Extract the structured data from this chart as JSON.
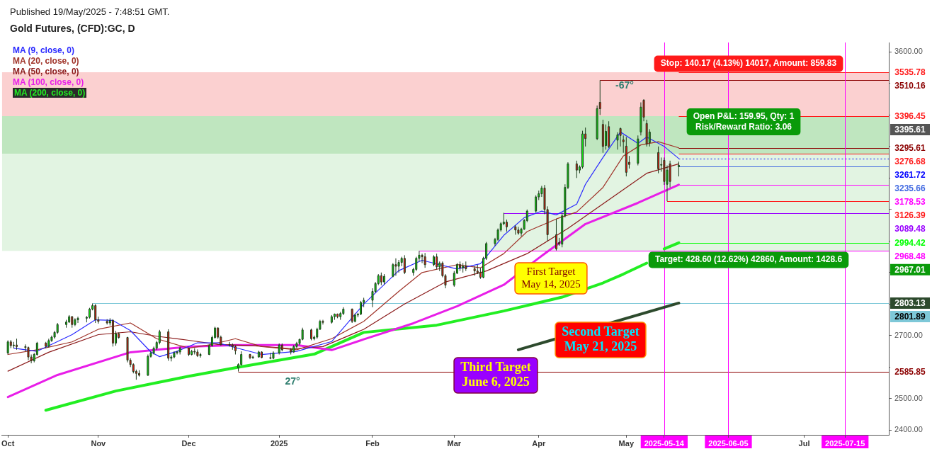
{
  "chart_data": {
    "type": "candlestick",
    "title": "Gold Futures, (CFD):GC, D",
    "subtitle": "Published 19/May/2025 - 7:48:51 GMT.",
    "x": [
      "2024-10-01",
      "2024-10-02",
      "2024-10-03",
      "2024-10-04",
      "2024-10-07",
      "2024-10-08",
      "2024-10-09",
      "2024-10-10",
      "2024-10-11",
      "2024-10-14",
      "2024-10-15",
      "2024-10-16",
      "2024-10-17",
      "2024-10-18",
      "2024-10-21",
      "2024-10-22",
      "2024-10-23",
      "2024-10-24",
      "2024-10-25",
      "2024-10-28",
      "2024-10-29",
      "2024-10-30",
      "2024-10-31",
      "2024-11-01",
      "2024-11-04",
      "2024-11-05",
      "2024-11-06",
      "2024-11-07",
      "2024-11-08",
      "2024-11-11",
      "2024-11-12",
      "2024-11-13",
      "2024-11-14",
      "2024-11-15",
      "2024-11-18",
      "2024-11-19",
      "2024-11-20",
      "2024-11-21",
      "2024-11-22",
      "2024-11-25",
      "2024-11-26",
      "2024-11-27",
      "2024-11-28",
      "2024-11-29",
      "2024-12-02",
      "2024-12-03",
      "2024-12-04",
      "2024-12-05",
      "2024-12-06",
      "2024-12-09",
      "2024-12-10",
      "2024-12-11",
      "2024-12-12",
      "2024-12-13",
      "2024-12-16",
      "2024-12-17",
      "2024-12-18",
      "2024-12-19",
      "2024-12-20",
      "2024-12-23",
      "2024-12-24",
      "2024-12-26",
      "2024-12-27",
      "2024-12-30",
      "2024-12-31",
      "2025-01-02",
      "2025-01-03",
      "2025-01-06",
      "2025-01-07",
      "2025-01-08",
      "2025-01-09",
      "2025-01-10",
      "2025-01-13",
      "2025-01-14",
      "2025-01-15",
      "2025-01-16",
      "2025-01-17",
      "2025-01-20",
      "2025-01-21",
      "2025-01-22",
      "2025-01-23",
      "2025-01-24",
      "2025-01-27",
      "2025-01-28",
      "2025-01-29",
      "2025-01-30",
      "2025-01-31",
      "2025-02-03",
      "2025-02-04",
      "2025-02-05",
      "2025-02-06",
      "2025-02-07",
      "2025-02-10",
      "2025-02-11",
      "2025-02-12",
      "2025-02-13",
      "2025-02-14",
      "2025-02-17",
      "2025-02-18",
      "2025-02-19",
      "2025-02-20",
      "2025-02-21",
      "2025-02-24",
      "2025-02-25",
      "2025-02-26",
      "2025-02-27",
      "2025-02-28",
      "2025-03-03",
      "2025-03-04",
      "2025-03-05",
      "2025-03-06",
      "2025-03-07",
      "2025-03-10",
      "2025-03-11",
      "2025-03-12",
      "2025-03-13",
      "2025-03-14",
      "2025-03-17",
      "2025-03-18",
      "2025-03-19",
      "2025-03-20",
      "2025-03-21",
      "2025-03-24",
      "2025-03-25",
      "2025-03-26",
      "2025-03-27",
      "2025-03-28",
      "2025-03-31",
      "2025-04-01",
      "2025-04-02",
      "2025-04-03",
      "2025-04-04",
      "2025-04-07",
      "2025-04-08",
      "2025-04-09",
      "2025-04-10",
      "2025-04-11",
      "2025-04-14",
      "2025-04-15",
      "2025-04-16",
      "2025-04-17",
      "2025-04-21",
      "2025-04-22",
      "2025-04-23",
      "2025-04-24",
      "2025-04-25",
      "2025-04-28",
      "2025-04-29",
      "2025-04-30",
      "2025-05-01",
      "2025-05-02",
      "2025-05-05",
      "2025-05-06",
      "2025-05-07",
      "2025-05-08",
      "2025-05-09",
      "2025-05-12",
      "2025-05-13",
      "2025-05-14",
      "2025-05-15",
      "2025-05-16",
      "2025-05-19"
    ],
    "ohlc": [
      [
        2645,
        2685,
        2640,
        2680
      ],
      [
        2680,
        2686,
        2660,
        2668
      ],
      [
        2668,
        2680,
        2660,
        2670
      ],
      [
        2670,
        2690,
        2655,
        2665
      ],
      [
        2665,
        2672,
        2650,
        2662
      ],
      [
        2662,
        2665,
        2622,
        2632
      ],
      [
        2632,
        2640,
        2612,
        2620
      ],
      [
        2620,
        2645,
        2615,
        2640
      ],
      [
        2640,
        2680,
        2636,
        2676
      ],
      [
        2676,
        2680,
        2660,
        2666
      ],
      [
        2666,
        2690,
        2662,
        2684
      ],
      [
        2684,
        2700,
        2680,
        2695
      ],
      [
        2695,
        2715,
        2690,
        2710
      ],
      [
        2710,
        2740,
        2705,
        2735
      ],
      [
        2735,
        2750,
        2725,
        2743
      ],
      [
        2743,
        2765,
        2740,
        2760
      ],
      [
        2760,
        2762,
        2725,
        2735
      ],
      [
        2735,
        2755,
        2730,
        2750
      ],
      [
        2750,
        2760,
        2740,
        2755
      ],
      [
        2755,
        2762,
        2742,
        2758
      ],
      [
        2758,
        2788,
        2754,
        2784
      ],
      [
        2784,
        2801.89,
        2780,
        2795
      ],
      [
        2795,
        2800,
        2740,
        2750
      ],
      [
        2750,
        2760,
        2738,
        2745
      ],
      [
        2745,
        2752,
        2735,
        2740
      ],
      [
        2740,
        2755,
        2732,
        2748
      ],
      [
        2748,
        2752,
        2665,
        2676
      ],
      [
        2676,
        2715,
        2668,
        2706
      ],
      [
        2706,
        2710,
        2690,
        2694
      ],
      [
        2694,
        2696,
        2615,
        2622
      ],
      [
        2622,
        2628,
        2600,
        2608
      ],
      [
        2608,
        2612,
        2580,
        2586
      ],
      [
        2586,
        2592,
        2560,
        2580
      ],
      [
        2580,
        2590,
        2570,
        2574
      ],
      [
        2574,
        2640,
        2572,
        2634
      ],
      [
        2634,
        2650,
        2630,
        2645
      ],
      [
        2645,
        2665,
        2640,
        2660
      ],
      [
        2660,
        2683,
        2655,
        2678
      ],
      [
        2678,
        2718,
        2672,
        2712
      ],
      [
        2712,
        2720,
        2620,
        2628
      ],
      [
        2628,
        2638,
        2618,
        2632
      ],
      [
        2632,
        2650,
        2628,
        2645
      ],
      [
        2645,
        2652,
        2640,
        2648
      ],
      [
        2648,
        2665,
        2640,
        2660
      ],
      [
        2660,
        2662,
        2635,
        2640
      ],
      [
        2640,
        2655,
        2637,
        2650
      ],
      [
        2650,
        2660,
        2640,
        2648
      ],
      [
        2648,
        2656,
        2632,
        2636
      ],
      [
        2636,
        2645,
        2630,
        2640
      ],
      [
        2640,
        2672,
        2638,
        2668
      ],
      [
        2668,
        2700,
        2665,
        2694
      ],
      [
        2694,
        2728,
        2690,
        2724
      ],
      [
        2724,
        2726,
        2690,
        2695
      ],
      [
        2695,
        2700,
        2668,
        2672
      ],
      [
        2672,
        2680,
        2665,
        2670
      ],
      [
        2670,
        2675,
        2655,
        2665
      ],
      [
        2665,
        2668,
        2640,
        2652
      ],
      [
        2598,
        2612,
        2585.85,
        2608
      ],
      [
        2608,
        2650,
        2605,
        2640
      ],
      [
        2640,
        2642,
        2625,
        2630
      ],
      [
        2630,
        2636,
        2626,
        2632
      ],
      [
        2632,
        2652,
        2630,
        2648
      ],
      [
        2648,
        2650,
        2628,
        2630
      ],
      [
        2630,
        2645,
        2625,
        2628
      ],
      [
        2628,
        2650,
        2625,
        2645
      ],
      [
        2645,
        2675,
        2640,
        2670
      ],
      [
        2670,
        2675,
        2650,
        2655
      ],
      [
        2655,
        2660,
        2640,
        2648
      ],
      [
        2648,
        2670,
        2645,
        2665
      ],
      [
        2665,
        2680,
        2660,
        2675
      ],
      [
        2675,
        2690,
        2670,
        2688
      ],
      [
        2688,
        2725,
        2685,
        2718
      ],
      [
        2718,
        2722,
        2685,
        2690
      ],
      [
        2690,
        2700,
        2685,
        2695
      ],
      [
        2695,
        2725,
        2690,
        2720
      ],
      [
        2720,
        2750,
        2718,
        2745
      ],
      [
        2745,
        2750,
        2735,
        2742
      ],
      [
        2742,
        2765,
        2738,
        2760
      ],
      [
        2760,
        2770,
        2750,
        2768
      ],
      [
        2768,
        2770,
        2755,
        2760
      ],
      [
        2760,
        2775,
        2750,
        2770
      ],
      [
        2770,
        2790,
        2765,
        2784
      ],
      [
        2784,
        2786,
        2740,
        2745
      ],
      [
        2745,
        2770,
        2742,
        2765
      ],
      [
        2765,
        2772,
        2758,
        2768
      ],
      [
        2768,
        2810,
        2765,
        2805
      ],
      [
        2805,
        2820,
        2790,
        2812
      ],
      [
        2812,
        2850,
        2790,
        2840
      ],
      [
        2840,
        2870,
        2835,
        2865
      ],
      [
        2865,
        2895,
        2860,
        2890
      ],
      [
        2890,
        2900,
        2860,
        2870
      ],
      [
        2870,
        2895,
        2862,
        2888
      ],
      [
        2888,
        2930,
        2885,
        2925
      ],
      [
        2925,
        2945,
        2890,
        2920
      ],
      [
        2920,
        2940,
        2900,
        2932
      ],
      [
        2932,
        2950,
        2920,
        2945
      ],
      [
        2945,
        2955,
        2895,
        2900
      ],
      [
        2900,
        2915,
        2890,
        2910
      ],
      [
        2910,
        2950,
        2905,
        2945
      ],
      [
        2945,
        2968.48,
        2935,
        2955
      ],
      [
        2955,
        2960,
        2930,
        2950
      ],
      [
        2950,
        2962,
        2915,
        2925
      ],
      [
        2925,
        2955,
        2920,
        2950
      ],
      [
        2950,
        2960,
        2910,
        2918
      ],
      [
        2918,
        2935,
        2905,
        2930
      ],
      [
        2930,
        2935,
        2885,
        2890
      ],
      [
        2890,
        2895,
        2850,
        2860
      ],
      [
        2860,
        2905,
        2855,
        2898
      ],
      [
        2898,
        2930,
        2895,
        2925
      ],
      [
        2925,
        2935,
        2905,
        2915
      ],
      [
        2915,
        2930,
        2900,
        2920
      ],
      [
        2920,
        2935,
        2905,
        2912
      ],
      [
        2912,
        2920,
        2890,
        2905
      ],
      [
        2905,
        2925,
        2895,
        2900
      ],
      [
        2900,
        2915,
        2880,
        2885
      ],
      [
        2885,
        2950,
        2882,
        2945
      ],
      [
        2945,
        2997,
        2940,
        2992
      ],
      [
        2992,
        3010,
        2985,
        3005
      ],
      [
        3005,
        3040,
        3000,
        3035
      ],
      [
        3035,
        3060,
        3030,
        3055
      ],
      [
        3055,
        3089.48,
        3050,
        3060
      ],
      [
        3060,
        3068,
        3030,
        3045
      ],
      [
        3045,
        3050,
        3020,
        3035
      ],
      [
        3035,
        3045,
        3020,
        3025
      ],
      [
        3025,
        3042,
        3015,
        3038
      ],
      [
        3038,
        3070,
        3035,
        3065
      ],
      [
        3065,
        3100,
        3060,
        3095
      ],
      [
        3095,
        3145,
        3090,
        3140
      ],
      [
        3140,
        3160,
        3130,
        3150
      ],
      [
        3150,
        3175,
        3140,
        3168
      ],
      [
        3168,
        3178,
        3085,
        3100
      ],
      [
        3100,
        3110,
        3000,
        3020
      ],
      [
        3020,
        3070,
        2970,
        2975
      ],
      [
        2995,
        3010,
        2985,
        2990
      ],
      [
        2990,
        3090,
        2980,
        3080
      ],
      [
        3080,
        3180,
        3075,
        3170
      ],
      [
        3170,
        3250,
        3165,
        3245
      ],
      [
        3245,
        3255,
        3200,
        3225
      ],
      [
        3225,
        3240,
        3215,
        3235
      ],
      [
        3235,
        3350,
        3230,
        3340
      ],
      [
        3340,
        3360,
        3300,
        3325
      ],
      [
        3325,
        3430,
        3320,
        3420
      ],
      [
        3440,
        3510.16,
        3400,
        3420
      ],
      [
        3370,
        3385,
        3280,
        3300
      ],
      [
        3303,
        3370,
        3290,
        3348
      ],
      [
        3363,
        3380,
        3295,
        3300
      ],
      [
        3320,
        3345,
        3290,
        3337
      ],
      [
        3357,
        3360,
        3300,
        3335
      ],
      [
        3321,
        3335,
        3280,
        3315
      ],
      [
        3301,
        3330,
        3205,
        3218
      ],
      [
        3250,
        3270,
        3230,
        3243
      ],
      [
        3247,
        3335,
        3240,
        3324
      ],
      [
        3346,
        3440,
        3335,
        3425
      ],
      [
        3447,
        3450,
        3380,
        3393
      ],
      [
        3373,
        3385,
        3300,
        3308
      ],
      [
        3312,
        3355,
        3300,
        3346
      ],
      [
        3281,
        3300,
        3215,
        3229
      ],
      [
        3241,
        3265,
        3220,
        3243
      ],
      [
        3256,
        3265,
        3178,
        3189
      ],
      [
        3180,
        3240,
        3126.39,
        3225
      ],
      [
        3245,
        3255,
        3170,
        3189
      ],
      [
        3236,
        3252,
        3205,
        3240
      ]
    ],
    "series": [
      {
        "type": "line",
        "name": "MA (9, close, 0)",
        "color": "#2b2bff",
        "x": [
          "2024-10-03",
          "2024-10-11",
          "2024-10-23",
          "2024-10-31",
          "2024-11-06",
          "2024-11-12",
          "2024-11-19",
          "2024-11-22",
          "2024-11-28",
          "2024-12-05",
          "2024-12-12",
          "2024-12-20",
          "2024-12-27",
          "2025-01-08",
          "2025-01-20",
          "2025-01-31",
          "2025-02-12",
          "2025-02-20",
          "2025-03-04",
          "2025-03-12",
          "2025-03-20",
          "2025-03-27",
          "2025-04-02",
          "2025-04-07",
          "2025-04-14",
          "2025-04-17",
          "2025-04-23",
          "2025-04-29",
          "2025-05-05",
          "2025-05-08",
          "2025-05-14",
          "2025-05-19"
        ],
        "values": [
          2660,
          2650,
          2703,
          2750,
          2748,
          2716,
          2648,
          2633,
          2650,
          2677,
          2677,
          2657,
          2640,
          2650,
          2681,
          2800,
          2906,
          2939,
          2911,
          2928,
          3018,
          3074,
          3095,
          3083,
          3117,
          3180,
          3265,
          3346,
          3310,
          3330,
          3300,
          3261.72
        ]
      },
      {
        "type": "line",
        "name": "MA (20, close, 0)",
        "color": "#a0342a",
        "x": [
          "2024-10-01",
          "2024-10-11",
          "2024-10-23",
          "2024-11-01",
          "2024-11-12",
          "2024-11-21",
          "2024-12-02",
          "2024-12-10",
          "2024-12-18",
          "2024-12-27",
          "2025-01-08",
          "2025-01-20",
          "2025-01-31",
          "2025-02-12",
          "2025-02-20",
          "2025-03-04",
          "2025-03-12",
          "2025-03-20",
          "2025-03-28",
          "2025-04-07",
          "2025-04-14",
          "2025-04-23",
          "2025-04-30",
          "2025-05-06",
          "2025-05-12",
          "2025-05-19"
        ],
        "values": [
          2640,
          2655,
          2680,
          2720,
          2740,
          2690,
          2660,
          2672,
          2690,
          2665,
          2655,
          2690,
          2745,
          2840,
          2900,
          2925,
          2915,
          2960,
          3030,
          3070,
          3092,
          3170,
          3270,
          3305,
          3315,
          3295.61
        ]
      },
      {
        "type": "line",
        "name": "MA (50, close, 0)",
        "color": "#8b1a1a",
        "x": [
          "2024-10-01",
          "2024-10-15",
          "2024-11-01",
          "2024-11-12",
          "2024-11-21",
          "2024-12-02",
          "2024-12-12",
          "2024-12-24",
          "2025-01-07",
          "2025-01-17",
          "2025-01-31",
          "2025-02-14",
          "2025-02-28",
          "2025-03-14",
          "2025-03-28",
          "2025-04-11",
          "2025-04-28",
          "2025-05-08",
          "2025-05-19"
        ],
        "values": [
          2587,
          2647,
          2703,
          2712,
          2698,
          2685,
          2672,
          2668,
          2658,
          2665,
          2720,
          2800,
          2870,
          2905,
          2960,
          3040,
          3150,
          3215,
          3245
        ]
      },
      {
        "type": "line",
        "name": "MA (100, close, 0)",
        "color": "#e81ee8",
        "x": [
          "2024-10-01",
          "2024-10-18",
          "2024-11-12",
          "2024-12-02",
          "2024-12-18",
          "2025-01-08",
          "2025-01-20",
          "2025-01-31",
          "2025-02-17",
          "2025-03-04",
          "2025-03-20",
          "2025-04-01",
          "2025-04-17",
          "2025-05-05",
          "2025-05-19"
        ],
        "values": [
          2505,
          2575,
          2647,
          2665,
          2670,
          2670,
          2654,
          2688,
          2739,
          2793,
          2861,
          2946,
          3054,
          3121,
          3178.53
        ]
      },
      {
        "type": "line",
        "name": "MA (200, close, 0)",
        "color": "#22ee22",
        "x": [
          "2024-10-14",
          "2024-11-07",
          "2024-12-02",
          "2024-12-18",
          "2025-01-14",
          "2025-01-31",
          "2025-02-25",
          "2025-03-20",
          "2025-04-09",
          "2025-04-23",
          "2025-04-30",
          "2025-05-08",
          "2025-05-12",
          "2025-05-14",
          "2025-05-19"
        ],
        "values": [
          2463,
          2524,
          2571,
          2598,
          2641,
          2710,
          2733,
          2778,
          2822,
          2867,
          2895,
          2930,
          null,
          2975,
          2994.42
        ]
      },
      {
        "type": "line",
        "color": "#2d4a2d",
        "x": [
          "2025-03-25",
          "2025-05-19"
        ],
        "values": [
          2655,
          2803.13
        ]
      }
    ],
    "xlim": [
      "2024-09-29",
      "2025-07-30"
    ],
    "xticks": [
      {
        "value": "2024-10-01",
        "label": "Oct"
      },
      {
        "value": "2024-11-01",
        "label": "Nov"
      },
      {
        "value": "2024-12-02",
        "label": "Dec"
      },
      {
        "value": "2025-01-02",
        "label": "2025"
      },
      {
        "value": "2025-02-03",
        "label": "Feb"
      },
      {
        "value": "2025-03-03",
        "label": "Mar"
      },
      {
        "value": "2025-04-01",
        "label": "Apr"
      },
      {
        "value": "2025-05-01",
        "label": "May"
      },
      {
        "value": "2025-05-14",
        "label": "2025-05-14"
      },
      {
        "value": "2025-06-05",
        "label": "2025-06-05"
      },
      {
        "value": "2025-07-01",
        "label": "Jul"
      },
      {
        "value": "2025-07-15",
        "label": "2025-07-15"
      }
    ],
    "ylim": [
      2385,
      3630
    ],
    "yticks": [
      {
        "value": 2400,
        "label": "2400.00"
      },
      {
        "value": 2500,
        "label": "2500.00"
      },
      {
        "value": 2600,
        "label": null
      },
      {
        "value": 2700,
        "label": "2700.00"
      },
      {
        "value": 2800,
        "label": null
      },
      {
        "value": 2900,
        "label": null
      },
      {
        "value": 3000,
        "label": null
      },
      {
        "value": 3100,
        "label": null
      },
      {
        "value": 3200,
        "label": null
      },
      {
        "value": 3300,
        "label": null
      },
      {
        "value": 3400,
        "label": null
      },
      {
        "value": 3500,
        "label": null
      },
      {
        "value": 3600,
        "label": "3600.00"
      }
    ],
    "bands": [
      {
        "axis": "y",
        "from": 3396.45,
        "to": 3535.78,
        "color": "#fbd0d0"
      },
      {
        "axis": "y",
        "from": 3276.68,
        "to": 3396.45,
        "color": "#bfe6bf"
      },
      {
        "axis": "y",
        "from": 2968.48,
        "to": 3276.68,
        "color": "#e2f4e2"
      }
    ],
    "ref_lines": [
      {
        "axis": "y",
        "value": 3535.78,
        "label": "3535.78",
        "color": "#ff1a1a"
      },
      {
        "axis": "y",
        "value": 3510.16,
        "label": "3510.16",
        "color": "#8b0000"
      },
      {
        "axis": "y",
        "value": 3396.45,
        "label": "3396.45",
        "color": "#ff1a1a"
      },
      {
        "axis": "y",
        "value": 3295.61,
        "label": "3295.61",
        "color": "#8b0000"
      },
      {
        "axis": "y",
        "value": 3276.68,
        "label": "3276.68",
        "color": "#ff1a1a"
      },
      {
        "axis": "y",
        "value": 3261.72,
        "label": "3261.72",
        "color": "#0000ff",
        "line_style": "dotted"
      },
      {
        "axis": "y",
        "value": 3235.66,
        "label": "3235.66",
        "color": "#4169e1"
      },
      {
        "axis": "y",
        "value": 3178.53,
        "label": "3178.53",
        "color": "#ff00ff"
      },
      {
        "axis": "y",
        "value": 3126.39,
        "label": "3126.39",
        "color": "#ff1a1a"
      },
      {
        "axis": "y",
        "value": 3089.48,
        "label": "3089.48",
        "color": "#9900ff"
      },
      {
        "axis": "y",
        "value": 2994.42,
        "label": "2994.42",
        "color": "#00ff00"
      },
      {
        "axis": "y",
        "value": 2968.48,
        "label": "2968.48",
        "color": "#ff00ff"
      },
      {
        "axis": "y",
        "value": 2801.89,
        "label": "2801.89",
        "color": "#7ec8d8"
      },
      {
        "axis": "y",
        "value": 2585.85,
        "label": "2585.85",
        "color": "#8b0000"
      },
      {
        "axis": "x",
        "value": "2025-05-14",
        "label": null,
        "color": "#ff00ff"
      },
      {
        "axis": "x",
        "value": "2025-06-05",
        "label": null,
        "color": "#ff00ff"
      },
      {
        "axis": "x",
        "value": "2025-07-15",
        "label": null,
        "color": "#ff00ff"
      }
    ],
    "annotations": [
      "Stop: 140.17 (4.13%) 14017, Amount: 859.83",
      "Open P&L: 159.95, Qty: 1\nRisk/Reward Ratio: 3.06",
      "Target: 428.60 (12.62%) 42860, Amount: 1428.6",
      "First Target\nMay 14, 2025",
      "Second Target\nMay 21, 2025",
      "Third Target\nJune 6, 2025",
      "-67°",
      "27°",
      "3395.61",
      "2967.01",
      "2803.13"
    ],
    "legend": "top left",
    "grid": false
  }
}
